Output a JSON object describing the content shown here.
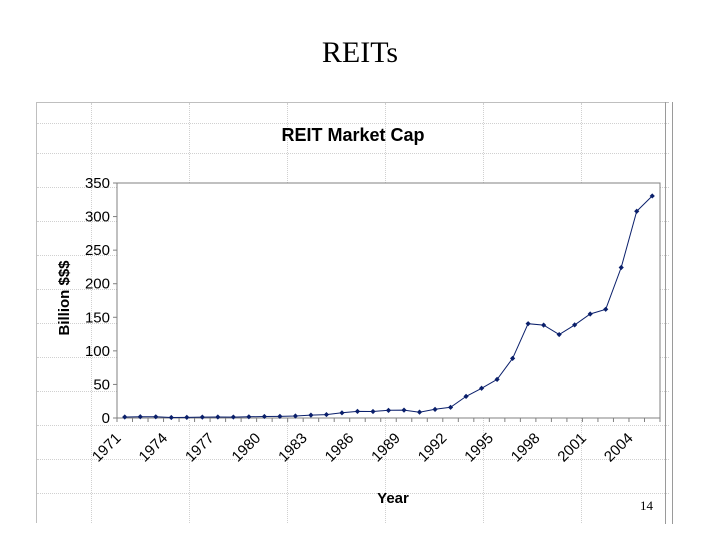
{
  "slide": {
    "title": "REITs",
    "page_number": "14"
  },
  "chart_data": {
    "type": "line",
    "title": "REIT Market Cap",
    "xlabel": "Year",
    "ylabel": "Billion $$$",
    "ylim": [
      0,
      350
    ],
    "yticks": [
      0,
      50,
      100,
      150,
      200,
      250,
      300,
      350
    ],
    "xtick_labels": [
      "1971",
      "1974",
      "1977",
      "1980",
      "1983",
      "1986",
      "1989",
      "1992",
      "1995",
      "1998",
      "2001",
      "2004"
    ],
    "x": [
      1971,
      1972,
      1973,
      1974,
      1975,
      1976,
      1977,
      1978,
      1979,
      1980,
      1981,
      1982,
      1983,
      1984,
      1985,
      1986,
      1987,
      1988,
      1989,
      1990,
      1991,
      1992,
      1993,
      1994,
      1995,
      1996,
      1997,
      1998,
      1999,
      2000,
      2001,
      2002,
      2003,
      2004,
      2005
    ],
    "series": [
      {
        "values": [
          1.5,
          1.9,
          1.8,
          0.7,
          0.9,
          1.3,
          1.5,
          1.4,
          1.8,
          2.3,
          2.4,
          3.0,
          4.3,
          5.1,
          7.7,
          9.9,
          9.7,
          11.4,
          11.7,
          8.7,
          12.9,
          15.9,
          32.2,
          44.3,
          57.5,
          88.8,
          140.5,
          138.3,
          124.3,
          138.7,
          154.9,
          161.9,
          224.2,
          307.9,
          330.7
        ]
      }
    ],
    "line_color": "#0a1f6b",
    "grid": false
  }
}
